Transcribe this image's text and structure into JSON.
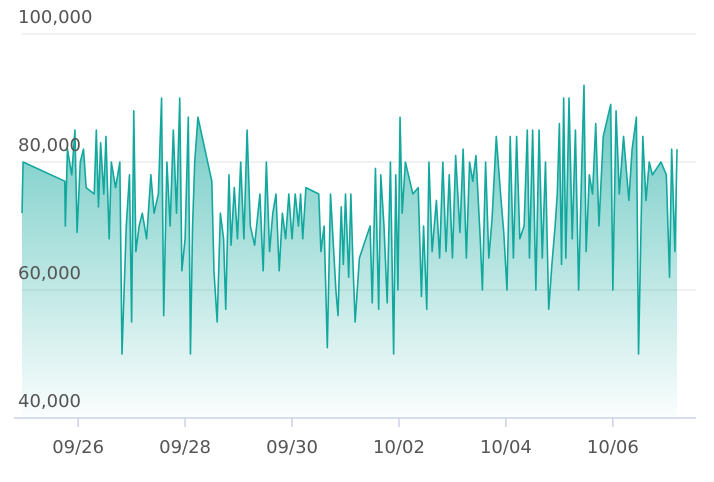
{
  "chart_data": {
    "type": "area",
    "x": [
      -1.05,
      -1.03,
      -0.25,
      -0.24,
      -0.2,
      -0.12,
      -0.06,
      -0.02,
      0.04,
      0.1,
      0.15,
      0.3,
      0.34,
      0.38,
      0.42,
      0.48,
      0.52,
      0.58,
      0.62,
      0.7,
      0.78,
      0.82,
      0.9,
      0.96,
      1.0,
      1.04,
      1.08,
      1.14,
      1.2,
      1.28,
      1.36,
      1.42,
      1.5,
      1.56,
      1.6,
      1.66,
      1.72,
      1.78,
      1.84,
      1.9,
      1.94,
      2.0,
      2.06,
      2.1,
      2.14,
      2.18,
      2.24,
      2.5,
      2.54,
      2.6,
      2.66,
      2.72,
      2.76,
      2.82,
      2.86,
      2.92,
      2.98,
      3.04,
      3.1,
      3.16,
      3.22,
      3.3,
      3.4,
      3.46,
      3.52,
      3.58,
      3.64,
      3.7,
      3.76,
      3.82,
      3.88,
      3.94,
      4.0,
      4.06,
      4.12,
      4.16,
      4.2,
      4.26,
      4.5,
      4.54,
      4.6,
      4.66,
      4.72,
      4.78,
      4.82,
      4.86,
      4.92,
      4.96,
      5.0,
      5.06,
      5.1,
      5.14,
      5.18,
      5.26,
      5.46,
      5.5,
      5.56,
      5.62,
      5.66,
      5.72,
      5.78,
      5.84,
      5.9,
      5.94,
      5.98,
      6.02,
      6.06,
      6.12,
      6.26,
      6.36,
      6.42,
      6.46,
      6.52,
      6.56,
      6.62,
      6.7,
      6.76,
      6.82,
      6.88,
      6.94,
      7.0,
      7.06,
      7.14,
      7.2,
      7.26,
      7.32,
      7.38,
      7.44,
      7.52,
      7.56,
      7.62,
      7.68,
      7.74,
      7.82,
      7.9,
      7.96,
      8.02,
      8.08,
      8.14,
      8.2,
      8.26,
      8.34,
      8.4,
      8.44,
      8.5,
      8.56,
      8.62,
      8.68,
      8.74,
      8.8,
      8.86,
      8.92,
      8.96,
      9.0,
      9.04,
      9.08,
      9.12,
      9.18,
      9.24,
      9.3,
      9.36,
      9.42,
      9.46,
      9.5,
      9.56,
      9.62,
      9.68,
      9.74,
      9.82,
      9.96,
      10.0,
      10.06,
      10.12,
      10.2,
      10.3,
      10.36,
      10.44,
      10.48,
      10.56,
      10.62,
      10.68,
      10.74,
      10.9,
      11.0,
      11.06,
      11.1,
      11.16,
      11.2
    ],
    "series": [
      {
        "color": "#13a89e",
        "values": [
          72000,
          80000,
          77000,
          70000,
          82000,
          78000,
          85000,
          69000,
          80000,
          82000,
          76000,
          75000,
          85000,
          73000,
          83000,
          75000,
          84000,
          68000,
          80000,
          76000,
          80000,
          50000,
          70000,
          78000,
          55000,
          88000,
          66000,
          70000,
          72000,
          68000,
          78000,
          72000,
          75000,
          90000,
          56000,
          80000,
          70000,
          85000,
          72000,
          90000,
          63000,
          68000,
          87000,
          50000,
          70000,
          80000,
          87000,
          77000,
          63000,
          55000,
          72000,
          68000,
          57000,
          78000,
          67000,
          76000,
          68000,
          80000,
          68000,
          85000,
          70000,
          67000,
          75000,
          63000,
          80000,
          66000,
          72000,
          75000,
          63000,
          72000,
          68000,
          75000,
          68000,
          75000,
          70000,
          75000,
          68000,
          76000,
          75000,
          66000,
          70000,
          51000,
          75000,
          66000,
          60000,
          56000,
          73000,
          64000,
          75000,
          62000,
          75000,
          64000,
          55000,
          65000,
          70000,
          58000,
          79000,
          57000,
          78000,
          70000,
          58000,
          80000,
          50000,
          78000,
          60000,
          87000,
          72000,
          80000,
          75000,
          76000,
          59000,
          70000,
          57000,
          80000,
          66000,
          74000,
          65000,
          80000,
          66000,
          78000,
          65000,
          81000,
          69000,
          82000,
          65000,
          80000,
          77000,
          81000,
          68000,
          60000,
          80000,
          65000,
          71000,
          84000,
          75000,
          69000,
          60000,
          84000,
          65000,
          84000,
          68000,
          70000,
          85000,
          65000,
          85000,
          60000,
          85000,
          65000,
          80000,
          57000,
          64000,
          70000,
          75000,
          86000,
          64000,
          90000,
          65000,
          90000,
          68000,
          85000,
          60000,
          80000,
          92000,
          66000,
          78000,
          75000,
          86000,
          70000,
          84000,
          89000,
          60000,
          88000,
          75000,
          84000,
          74000,
          82000,
          87000,
          50000,
          84000,
          74000,
          80000,
          78000,
          80000,
          78000,
          62000,
          82000,
          66000,
          82000
        ]
      }
    ],
    "xlim": [
      -1.05,
      11.48
    ],
    "xticks": [
      {
        "value": 0,
        "label": "09/26"
      },
      {
        "value": 2,
        "label": "09/28"
      },
      {
        "value": 4,
        "label": "09/30"
      },
      {
        "value": 6,
        "label": "10/02"
      },
      {
        "value": 8,
        "label": "10/04"
      },
      {
        "value": 10,
        "label": "10/06"
      }
    ],
    "ylim": [
      40000,
      100000
    ],
    "yticks": [
      {
        "value": 40000,
        "label": "40,000"
      },
      {
        "value": 60000,
        "label": "60,000"
      },
      {
        "value": 80000,
        "label": "80,000"
      },
      {
        "value": 100000,
        "label": "100,000"
      }
    ],
    "grid": true
  }
}
